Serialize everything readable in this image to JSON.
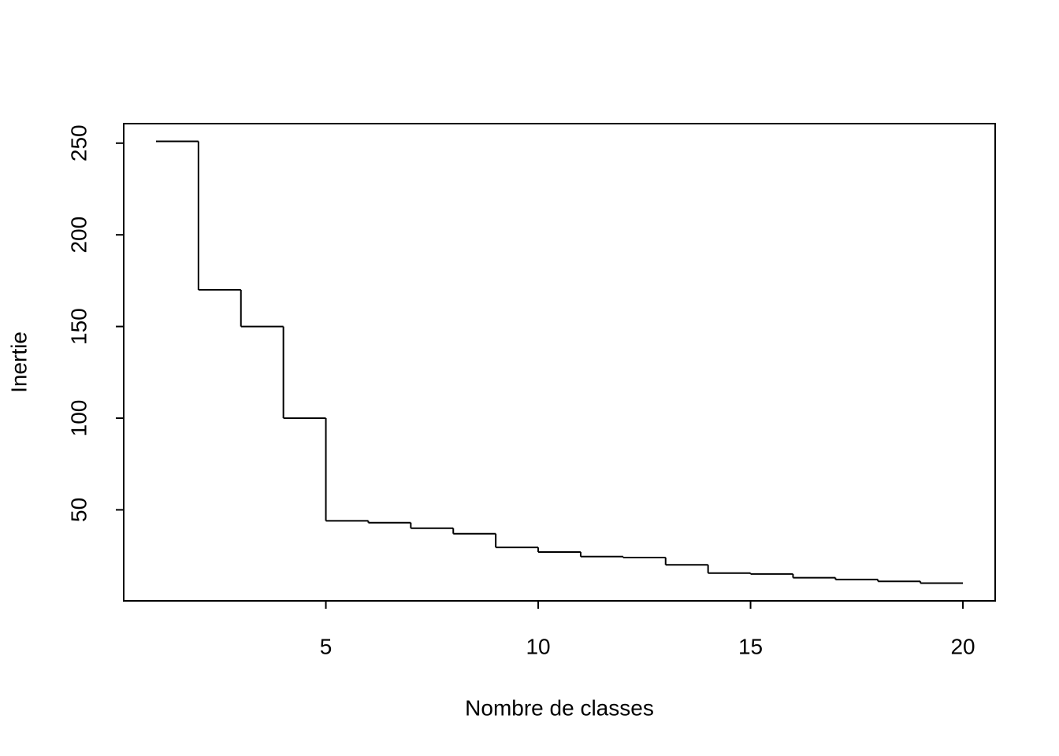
{
  "chart_data": {
    "type": "step",
    "x_label": "Nombre de classes",
    "y_label": "Inertie",
    "x": [
      1,
      2,
      3,
      4,
      5,
      6,
      7,
      8,
      9,
      10,
      11,
      12,
      13,
      14,
      15,
      16,
      17,
      18,
      19,
      20
    ],
    "values": [
      251,
      170,
      150,
      100,
      44,
      43,
      40,
      37,
      29.5,
      27,
      24.5,
      24,
      20,
      15.5,
      15,
      13,
      12,
      11,
      10,
      10
    ],
    "color": "#000000",
    "xlim": [
      0.24,
      20.76
    ],
    "xticks": [
      5,
      10,
      15,
      20
    ],
    "ylim": [
      0.36,
      260.64
    ],
    "yticks": [
      50,
      100,
      150,
      200,
      250
    ]
  }
}
